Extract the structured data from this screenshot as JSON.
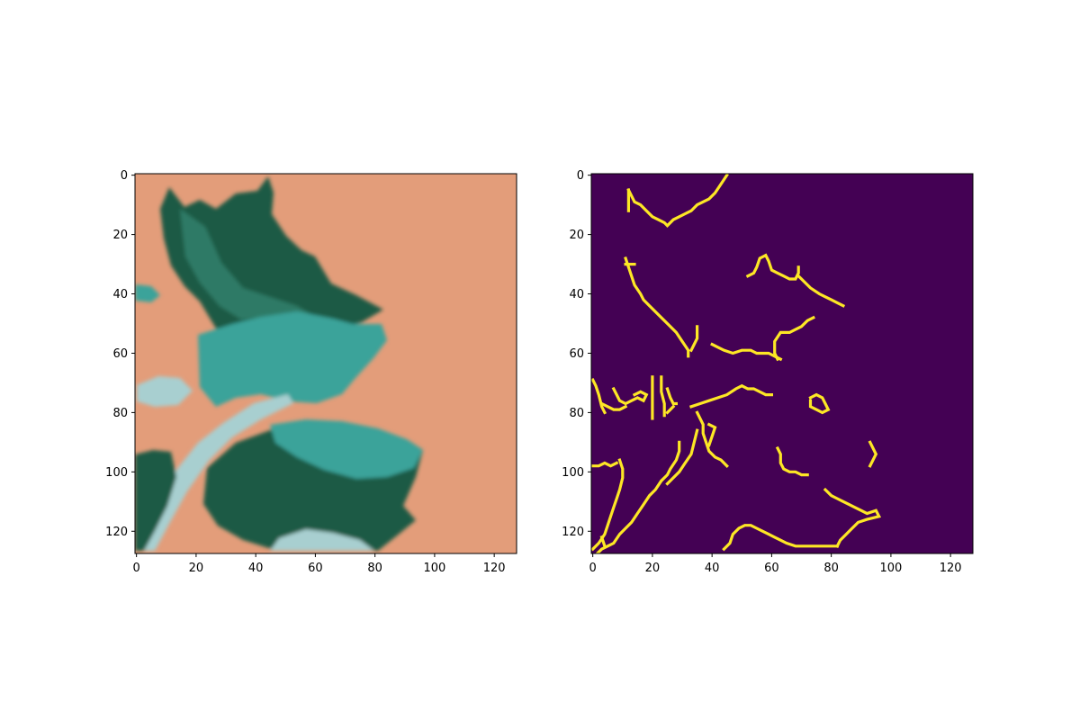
{
  "chart_data": [
    {
      "type": "heatmap",
      "content": "image",
      "title": "",
      "xlabel": "",
      "ylabel": "",
      "xlim": [
        -0.5,
        127.5
      ],
      "ylim": [
        127.5,
        -0.5
      ],
      "xticks": [
        0,
        20,
        40,
        60,
        80,
        100,
        120
      ],
      "yticks": [
        0,
        20,
        40,
        60,
        80,
        100,
        120
      ],
      "colors": {
        "background": "#e39d7a",
        "leaf_dark": "#1f5a44",
        "leaf_mid": "#2f7a66",
        "leaf_teal": "#3aa39a",
        "leaf_light": "#a8cfd0"
      }
    },
    {
      "type": "heatmap",
      "content": "edge map",
      "colormap": "viridis",
      "title": "",
      "xlabel": "",
      "ylabel": "",
      "xlim": [
        -0.5,
        127.5
      ],
      "ylim": [
        127.5,
        -0.5
      ],
      "xticks": [
        0,
        20,
        40,
        60,
        80,
        100,
        120
      ],
      "yticks": [
        0,
        20,
        40,
        60,
        80,
        100,
        120
      ],
      "colors": {
        "background": "#440154",
        "edge": "#fde725"
      },
      "edges": [
        [
          [
            12,
            5
          ],
          [
            13,
            7
          ],
          [
            14,
            9
          ],
          [
            16,
            10
          ],
          [
            18,
            12
          ],
          [
            20,
            14
          ],
          [
            22,
            15
          ],
          [
            24,
            16
          ],
          [
            25,
            17
          ],
          [
            27,
            15
          ],
          [
            29,
            14
          ],
          [
            31,
            13
          ],
          [
            33,
            12
          ],
          [
            35,
            10
          ],
          [
            37,
            9
          ],
          [
            39,
            8
          ],
          [
            41,
            6
          ],
          [
            43,
            3
          ],
          [
            45,
            0
          ]
        ],
        [
          [
            12,
            5
          ],
          [
            12,
            8
          ],
          [
            12,
            12
          ]
        ],
        [
          [
            11,
            28
          ],
          [
            12,
            31
          ],
          [
            13,
            34
          ],
          [
            14,
            37
          ],
          [
            16,
            40
          ],
          [
            17,
            42
          ],
          [
            19,
            44
          ],
          [
            22,
            47
          ],
          [
            25,
            50
          ],
          [
            28,
            53
          ],
          [
            30,
            56
          ],
          [
            32,
            59
          ],
          [
            32,
            61
          ]
        ],
        [
          [
            11,
            30
          ],
          [
            14,
            30
          ]
        ],
        [
          [
            33,
            59
          ],
          [
            34,
            57
          ],
          [
            35,
            55
          ],
          [
            35,
            51
          ]
        ],
        [
          [
            40,
            57
          ],
          [
            42,
            58
          ],
          [
            44,
            59
          ],
          [
            47,
            60
          ],
          [
            50,
            59
          ],
          [
            53,
            59
          ],
          [
            55,
            60
          ],
          [
            57,
            60
          ],
          [
            59,
            60
          ],
          [
            61,
            61
          ],
          [
            63,
            62
          ]
        ],
        [
          [
            62,
            62
          ],
          [
            61,
            60
          ],
          [
            61,
            56
          ],
          [
            63,
            53
          ],
          [
            66,
            53
          ],
          [
            68,
            52
          ],
          [
            70,
            51
          ],
          [
            72,
            49
          ],
          [
            74,
            48
          ]
        ],
        [
          [
            52,
            34
          ],
          [
            54,
            33
          ],
          [
            55,
            31
          ],
          [
            56,
            28
          ],
          [
            58,
            27
          ],
          [
            59,
            29
          ],
          [
            60,
            32
          ],
          [
            62,
            33
          ],
          [
            64,
            34
          ],
          [
            66,
            35
          ],
          [
            68,
            35
          ],
          [
            69,
            33
          ],
          [
            69,
            31
          ]
        ],
        [
          [
            69,
            34
          ],
          [
            71,
            36
          ],
          [
            73,
            38
          ],
          [
            76,
            40
          ],
          [
            78,
            41
          ],
          [
            80,
            42
          ],
          [
            82,
            43
          ],
          [
            84,
            44
          ]
        ],
        [
          [
            0,
            69
          ],
          [
            1,
            71
          ],
          [
            2,
            74
          ],
          [
            3,
            78
          ],
          [
            4,
            80
          ]
        ],
        [
          [
            3,
            77
          ],
          [
            5,
            78
          ],
          [
            7,
            79
          ],
          [
            9,
            79
          ],
          [
            11,
            78
          ]
        ],
        [
          [
            7,
            72
          ],
          [
            8,
            74
          ],
          [
            9,
            76
          ],
          [
            11,
            77
          ],
          [
            13,
            76
          ],
          [
            15,
            75
          ],
          [
            17,
            76
          ],
          [
            18,
            74
          ],
          [
            16,
            73
          ],
          [
            14,
            74
          ]
        ],
        [
          [
            20,
            68
          ],
          [
            20,
            72
          ],
          [
            20,
            77
          ],
          [
            20,
            82
          ]
        ],
        [
          [
            23,
            68
          ],
          [
            23,
            73
          ],
          [
            24,
            77
          ],
          [
            24,
            81
          ]
        ],
        [
          [
            25,
            72
          ],
          [
            26,
            75
          ],
          [
            27,
            77
          ],
          [
            28,
            77
          ]
        ],
        [
          [
            25,
            80
          ],
          [
            26,
            79
          ],
          [
            27,
            78
          ]
        ],
        [
          [
            33,
            78
          ],
          [
            36,
            77
          ],
          [
            39,
            76
          ],
          [
            42,
            75
          ],
          [
            45,
            74
          ],
          [
            48,
            72
          ],
          [
            50,
            71
          ],
          [
            52,
            72
          ],
          [
            54,
            72
          ],
          [
            56,
            73
          ],
          [
            58,
            74
          ],
          [
            60,
            74
          ]
        ],
        [
          [
            35,
            80
          ],
          [
            36,
            82
          ],
          [
            37,
            84
          ],
          [
            37,
            87
          ],
          [
            38,
            90
          ],
          [
            39,
            93
          ],
          [
            41,
            95
          ],
          [
            43,
            96
          ],
          [
            45,
            98
          ]
        ],
        [
          [
            39,
            91
          ],
          [
            40,
            88
          ],
          [
            41,
            85
          ],
          [
            39,
            84
          ]
        ],
        [
          [
            29,
            90
          ],
          [
            29,
            93
          ],
          [
            28,
            96
          ],
          [
            26,
            99
          ],
          [
            25,
            101
          ],
          [
            23,
            103
          ],
          [
            21,
            106
          ],
          [
            19,
            108
          ],
          [
            17,
            111
          ],
          [
            15,
            114
          ],
          [
            13,
            117
          ],
          [
            11,
            119
          ],
          [
            9,
            121
          ],
          [
            7,
            124
          ],
          [
            5,
            125
          ],
          [
            3,
            126
          ],
          [
            1,
            128
          ]
        ],
        [
          [
            35,
            86
          ],
          [
            34,
            90
          ],
          [
            33,
            94
          ],
          [
            31,
            97
          ],
          [
            29,
            100
          ],
          [
            27,
            102
          ],
          [
            25,
            104
          ]
        ],
        [
          [
            0,
            98
          ],
          [
            2,
            98
          ],
          [
            4,
            97
          ],
          [
            6,
            98
          ],
          [
            8,
            97
          ]
        ],
        [
          [
            9,
            96
          ],
          [
            10,
            99
          ],
          [
            10,
            102
          ],
          [
            9,
            106
          ],
          [
            8,
            109
          ],
          [
            7,
            112
          ],
          [
            6,
            115
          ],
          [
            5,
            118
          ],
          [
            4,
            121
          ],
          [
            2,
            124
          ],
          [
            0,
            126
          ]
        ],
        [
          [
            3,
            122
          ],
          [
            4,
            125
          ]
        ],
        [
          [
            62,
            92
          ],
          [
            63,
            94
          ],
          [
            63,
            97
          ],
          [
            64,
            99
          ],
          [
            66,
            100
          ],
          [
            68,
            100
          ],
          [
            70,
            101
          ],
          [
            72,
            101
          ]
        ],
        [
          [
            73,
            75
          ],
          [
            75,
            74
          ],
          [
            77,
            75
          ],
          [
            78,
            77
          ],
          [
            79,
            79
          ],
          [
            77,
            80
          ],
          [
            75,
            79
          ],
          [
            73,
            78
          ],
          [
            73,
            76
          ]
        ],
        [
          [
            93,
            90
          ],
          [
            94,
            92
          ],
          [
            95,
            94
          ],
          [
            94,
            96
          ],
          [
            93,
            98
          ]
        ],
        [
          [
            78,
            106
          ],
          [
            80,
            108
          ],
          [
            82,
            109
          ],
          [
            84,
            110
          ],
          [
            86,
            111
          ],
          [
            88,
            112
          ],
          [
            90,
            113
          ],
          [
            92,
            114
          ],
          [
            95,
            113
          ],
          [
            96,
            115
          ],
          [
            92,
            116
          ],
          [
            89,
            117
          ],
          [
            87,
            119
          ],
          [
            85,
            121
          ],
          [
            83,
            123
          ],
          [
            82,
            125
          ]
        ],
        [
          [
            44,
            126
          ],
          [
            46,
            124
          ],
          [
            47,
            121
          ],
          [
            49,
            119
          ],
          [
            51,
            118
          ],
          [
            53,
            118
          ],
          [
            55,
            119
          ],
          [
            57,
            120
          ],
          [
            59,
            121
          ],
          [
            61,
            122
          ],
          [
            63,
            123
          ],
          [
            65,
            124
          ],
          [
            68,
            125
          ],
          [
            72,
            125
          ],
          [
            76,
            125
          ],
          [
            80,
            125
          ],
          [
            82,
            125
          ]
        ]
      ]
    }
  ]
}
